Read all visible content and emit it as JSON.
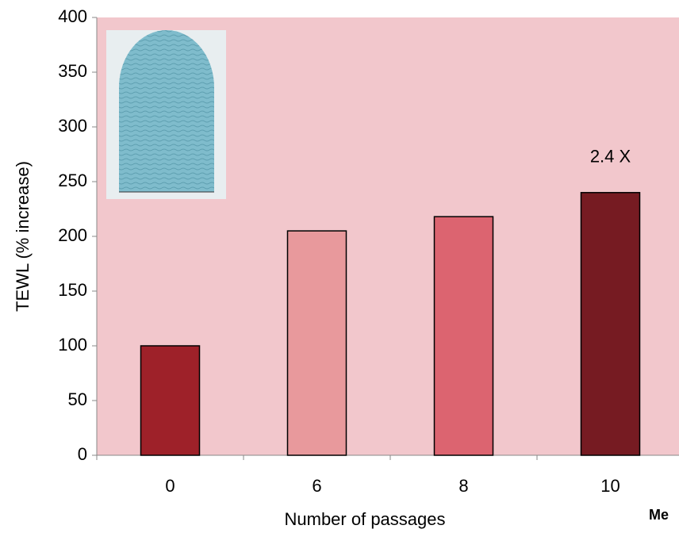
{
  "chart_data": {
    "type": "bar",
    "categories": [
      "0",
      "6",
      "8",
      "10"
    ],
    "values": [
      100,
      205,
      218,
      240
    ],
    "colors": [
      "#9e2129",
      "#e8999c",
      "#dc6470",
      "#761b22"
    ],
    "ylim": [
      0,
      400
    ],
    "yticks": [
      0,
      50,
      100,
      150,
      200,
      250,
      300,
      350,
      400
    ],
    "y_label": "TEWL (% increase)",
    "x_label": "Number of passages",
    "annotation": "2.4 X",
    "footnote": "Me"
  }
}
